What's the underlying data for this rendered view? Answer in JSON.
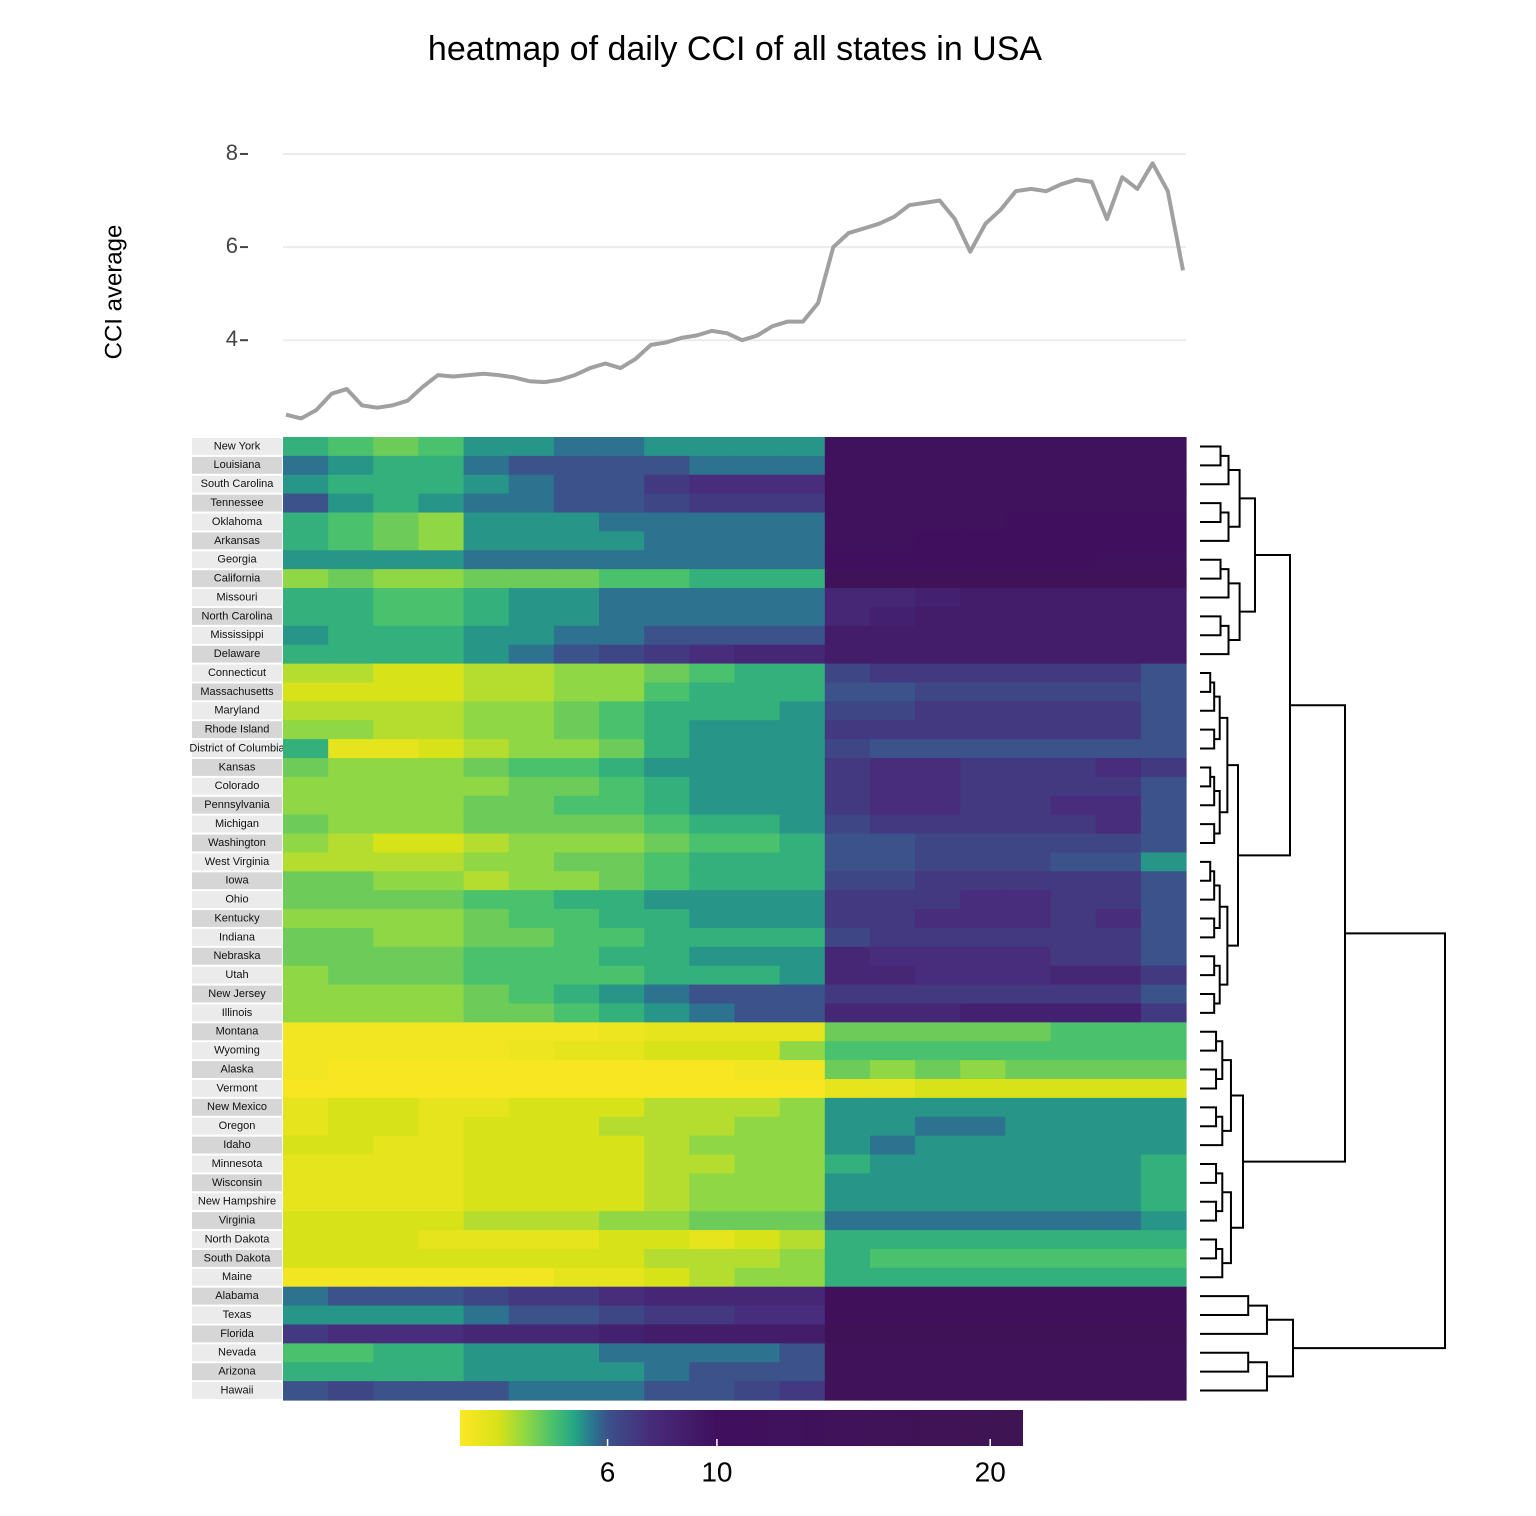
{
  "chart_data": [
    {
      "type": "line",
      "title": "heatmap of daily CCI of all states in USA",
      "y_label": "CCI average",
      "color": "#a0a0a0",
      "grid": true,
      "ylim": [
        2.2,
        8.3
      ],
      "yticks": [
        4,
        6,
        8
      ],
      "values": [
        2.4,
        2.32,
        2.5,
        2.85,
        2.95,
        2.6,
        2.55,
        2.6,
        2.7,
        3.0,
        3.25,
        3.22,
        3.25,
        3.28,
        3.25,
        3.2,
        3.12,
        3.1,
        3.15,
        3.25,
        3.4,
        3.5,
        3.4,
        3.6,
        3.9,
        3.95,
        4.05,
        4.1,
        4.2,
        4.15,
        4.0,
        4.1,
        4.3,
        4.4,
        4.4,
        4.8,
        6.0,
        6.3,
        6.4,
        6.5,
        6.65,
        6.9,
        6.95,
        7.0,
        6.6,
        5.9,
        6.5,
        6.8,
        7.2,
        7.25,
        7.2,
        7.35,
        7.45,
        7.4,
        6.6,
        7.5,
        7.25,
        7.8,
        7.2,
        5.5
      ]
    },
    {
      "type": "heatmap",
      "rows": [
        "New York",
        "Louisiana",
        "South Carolina",
        "Tennessee",
        "Oklahoma",
        "Arkansas",
        "Georgia",
        "California",
        "Missouri",
        "North Carolina",
        "Mississippi",
        "Delaware",
        "Connecticut",
        "Massachusetts",
        "Maryland",
        "Rhode Island",
        "District of Columbia",
        "Kansas",
        "Colorado",
        "Pennsylvania",
        "Michigan",
        "Washington",
        "West Virginia",
        "Iowa",
        "Ohio",
        "Kentucky",
        "Indiana",
        "Nebraska",
        "Utah",
        "New Jersey",
        "Illinois",
        "Montana",
        "Wyoming",
        "Alaska",
        "Vermont",
        "New Mexico",
        "Oregon",
        "Idaho",
        "Minnesota",
        "Wisconsin",
        "New Hampshire",
        "Virginia",
        "North Dakota",
        "South Dakota",
        "Maine",
        "Alabama",
        "Texas",
        "Florida",
        "Nevada",
        "Arizona",
        "Hawaii"
      ],
      "colorscale": [
        [
          0.6,
          "#fde725"
        ],
        [
          2.0,
          "#d8e219"
        ],
        [
          3.0,
          "#8fd744"
        ],
        [
          4.0,
          "#4ac16d"
        ],
        [
          4.8,
          "#25a585"
        ],
        [
          5.4,
          "#2a788e"
        ],
        [
          6.0,
          "#3b528b"
        ],
        [
          7.5,
          "#472d7b"
        ],
        [
          10,
          "#40105f"
        ],
        [
          21.2,
          "#3f1452"
        ]
      ],
      "colorbar_lim": [
        0.6,
        21.2
      ],
      "colorbar_ticks": [
        6,
        10,
        20
      ],
      "values": [
        [
          4.5,
          4,
          3.5,
          4,
          5,
          5,
          5.5,
          5.5,
          5,
          5,
          5,
          5,
          12,
          12,
          12,
          12,
          12,
          12,
          12,
          12
        ],
        [
          5.5,
          5,
          4.5,
          4.5,
          5.5,
          6,
          6,
          6,
          6,
          5.5,
          5.5,
          5.5,
          12,
          12,
          12,
          12,
          12,
          12,
          12,
          12
        ],
        [
          5,
          4.5,
          4.5,
          4.5,
          5,
          5.5,
          6,
          6,
          7,
          7.5,
          7.5,
          7.5,
          12,
          12,
          12,
          12,
          12,
          12,
          12,
          12
        ],
        [
          6,
          5,
          4.5,
          5,
          5.5,
          5.5,
          6,
          6,
          6.5,
          7,
          7,
          7,
          12,
          12,
          12,
          12,
          12,
          12,
          12,
          12
        ],
        [
          4.5,
          4,
          3.5,
          3,
          5,
          5,
          5,
          5.5,
          5.5,
          5.5,
          5.5,
          5.5,
          12,
          12,
          12,
          12,
          11,
          11,
          11,
          11
        ],
        [
          4.5,
          4,
          3.5,
          3,
          5,
          5,
          5,
          5,
          5.5,
          5.5,
          5.5,
          5.5,
          12,
          12,
          11,
          11,
          11,
          11,
          11,
          11
        ],
        [
          5,
          5,
          5,
          5,
          5.5,
          5.5,
          5.5,
          5.5,
          5.5,
          5.5,
          5.5,
          5.5,
          10,
          10,
          10,
          11,
          11,
          11,
          12,
          12
        ],
        [
          3,
          3.5,
          3,
          3,
          3.5,
          3.5,
          3.5,
          4,
          4,
          4.5,
          4.5,
          4.5,
          15,
          15,
          15,
          15,
          15,
          15,
          15,
          15
        ],
        [
          4.5,
          4.5,
          4,
          4,
          4.5,
          5,
          5,
          5.5,
          5.5,
          5.5,
          5.5,
          5.5,
          8,
          8,
          8.5,
          9,
          9,
          9,
          9,
          9
        ],
        [
          4.5,
          4.5,
          4,
          4,
          4.5,
          5,
          5,
          5.5,
          5.5,
          5.5,
          5.5,
          5.5,
          8,
          8.5,
          9,
          9,
          9,
          9,
          9,
          9
        ],
        [
          5,
          4.5,
          4.5,
          4.5,
          5,
          5,
          5.5,
          5.5,
          6,
          6,
          6,
          6,
          9,
          9,
          9,
          9,
          9,
          9,
          9,
          9
        ],
        [
          4.5,
          4.5,
          4.5,
          4.5,
          5,
          5.5,
          6,
          6.5,
          7,
          7.5,
          8,
          8,
          9,
          9,
          9,
          9,
          9,
          9,
          9,
          9
        ],
        [
          2.5,
          2.5,
          2,
          2,
          2.5,
          2.5,
          3,
          3,
          3.5,
          4,
          4.5,
          4.5,
          6.5,
          7,
          7,
          7,
          7,
          7,
          7,
          6
        ],
        [
          2,
          2,
          2,
          2,
          2.5,
          2.5,
          3,
          3,
          4,
          4.5,
          4.5,
          4.5,
          6,
          6,
          6.5,
          6.5,
          6.5,
          6.5,
          6.5,
          6
        ],
        [
          2.5,
          2.5,
          2.5,
          2.5,
          3,
          3,
          3.5,
          4,
          4.5,
          4.5,
          4.5,
          5,
          6.5,
          6.5,
          7,
          7,
          7,
          7,
          7,
          6
        ],
        [
          3,
          3,
          2.5,
          2.5,
          3,
          3,
          3.5,
          4,
          4.5,
          5,
          5,
          5,
          7,
          7,
          7,
          7,
          7,
          7,
          7,
          6
        ],
        [
          4.5,
          1.5,
          1.5,
          2,
          2.5,
          3,
          3,
          3.5,
          4.5,
          5,
          5,
          5,
          6.5,
          6,
          6,
          6,
          6,
          6,
          6,
          6
        ],
        [
          3.5,
          3,
          3,
          3,
          3.5,
          4,
          4,
          4.5,
          5,
          5,
          5,
          5,
          7,
          7.5,
          7.5,
          7,
          7,
          7,
          7.5,
          7
        ],
        [
          3,
          3,
          3,
          3,
          3,
          3.5,
          3.5,
          4,
          4.5,
          5,
          5,
          5,
          7,
          7.5,
          7.5,
          7,
          7,
          7,
          7,
          6
        ],
        [
          3,
          3,
          3,
          3,
          3.5,
          3.5,
          4,
          4,
          4.5,
          5,
          5,
          5,
          7,
          7.5,
          7.5,
          7,
          7,
          7.5,
          7.5,
          6
        ],
        [
          3.5,
          3,
          3,
          3,
          3.5,
          3.5,
          3.5,
          3.5,
          4,
          4.5,
          4.5,
          5,
          6.5,
          7,
          7,
          7,
          7,
          7,
          7.5,
          6
        ],
        [
          3,
          2.5,
          2,
          2,
          2.5,
          3,
          3,
          3,
          3.5,
          4,
          4,
          4.5,
          6,
          6,
          6.5,
          6.5,
          6.5,
          6.5,
          6.5,
          6
        ],
        [
          2.5,
          2.5,
          2.5,
          2.5,
          3,
          3,
          3.5,
          3.5,
          4,
          4.5,
          4.5,
          4.5,
          6,
          6,
          6.5,
          6.5,
          6.5,
          6,
          6,
          5
        ],
        [
          3.5,
          3.5,
          3,
          3,
          2.5,
          3,
          3,
          3.5,
          4,
          4.5,
          4.5,
          4.5,
          6.5,
          6.5,
          7,
          7,
          7,
          7,
          7,
          6
        ],
        [
          3.5,
          3.5,
          3.5,
          3.5,
          4,
          4,
          4.5,
          4.5,
          5,
          5,
          5,
          5,
          7,
          7,
          7,
          7.5,
          7.5,
          7,
          7,
          6
        ],
        [
          3,
          3,
          3,
          3,
          3.5,
          4,
          4,
          4.5,
          4.5,
          5,
          5,
          5,
          7,
          7,
          7.5,
          7.5,
          7.5,
          7,
          7.5,
          6
        ],
        [
          3.5,
          3.5,
          3,
          3,
          3.5,
          3.5,
          4,
          4,
          4.5,
          4.5,
          4.5,
          4.5,
          6.5,
          7,
          7,
          7,
          7,
          7,
          7,
          6
        ],
        [
          3.5,
          3.5,
          3.5,
          3.5,
          4,
          4,
          4,
          4.5,
          4.5,
          5,
          5,
          5,
          8,
          7.5,
          7.5,
          7.5,
          7.5,
          7,
          7,
          6
        ],
        [
          3,
          3.5,
          3.5,
          3.5,
          4,
          4,
          4,
          4,
          4.5,
          4.5,
          4.5,
          5,
          8,
          8,
          7.5,
          7.5,
          7.5,
          8,
          8,
          7
        ],
        [
          3,
          3,
          3,
          3,
          3.5,
          4,
          4.5,
          5,
          5.5,
          6,
          6,
          6,
          7,
          7,
          7,
          7,
          7,
          7,
          7,
          6
        ],
        [
          3,
          3,
          3,
          3,
          3.5,
          3.5,
          4,
          4.5,
          5,
          5.5,
          6,
          6,
          8,
          8,
          8,
          8.5,
          8.5,
          8.5,
          8.5,
          7
        ],
        [
          1,
          1,
          1,
          1,
          1,
          1,
          1,
          1.2,
          1.5,
          1.5,
          1.5,
          1.5,
          3.5,
          3.5,
          3.5,
          3.5,
          3.5,
          4,
          4,
          4
        ],
        [
          1,
          1,
          1,
          1,
          1,
          1.2,
          1.5,
          1.5,
          2,
          2,
          2,
          3,
          4,
          4,
          4,
          4,
          4,
          4,
          4,
          4
        ],
        [
          1,
          0.8,
          0.8,
          0.8,
          0.8,
          0.8,
          0.8,
          0.8,
          0.8,
          0.8,
          1,
          1,
          3.5,
          3,
          3.5,
          3,
          3.5,
          3.5,
          3.5,
          3.5
        ],
        [
          0.8,
          0.8,
          0.8,
          0.8,
          0.8,
          0.8,
          0.8,
          0.8,
          0.8,
          0.8,
          0.8,
          0.8,
          1.5,
          1.5,
          2,
          2,
          2,
          2,
          2,
          2
        ],
        [
          1.5,
          2,
          2,
          1.5,
          1.5,
          2,
          2,
          2,
          2.5,
          2.5,
          2.5,
          3,
          5,
          5,
          5,
          5,
          5,
          5,
          5,
          5
        ],
        [
          1.5,
          2,
          2,
          1.5,
          2,
          2,
          2,
          2.5,
          2.5,
          2.5,
          3,
          3,
          5,
          5,
          5.5,
          5.5,
          5,
          5,
          5,
          5
        ],
        [
          2,
          2,
          1.5,
          1.5,
          2,
          2,
          2,
          2,
          2.5,
          3,
          3,
          3,
          5,
          5.5,
          5,
          5,
          5,
          5,
          5,
          5
        ],
        [
          1.5,
          1.5,
          1.5,
          1.5,
          2,
          2,
          2,
          2,
          2.5,
          2.5,
          3,
          3,
          4.5,
          5,
          5,
          5,
          5,
          5,
          5,
          4.5
        ],
        [
          1.5,
          1.5,
          1.5,
          1.5,
          2,
          2,
          2,
          2,
          2.5,
          3,
          3,
          3,
          5,
          5,
          5,
          5,
          5,
          5,
          5,
          4.5
        ],
        [
          1.5,
          1.5,
          1.5,
          1.5,
          2,
          2,
          2,
          2,
          2.5,
          3,
          3,
          3,
          5,
          5,
          5,
          5,
          5,
          5,
          5,
          4.5
        ],
        [
          2,
          2,
          2,
          2,
          2.5,
          2.5,
          2.5,
          3,
          3,
          3.5,
          3.5,
          3.5,
          5.5,
          5.5,
          5.5,
          5.5,
          5.5,
          5.5,
          5.5,
          5
        ],
        [
          2,
          2,
          2,
          1.5,
          1.5,
          1.5,
          1.5,
          2,
          2,
          1.5,
          2,
          2.5,
          4.5,
          4.5,
          4.5,
          4.5,
          4.5,
          4.5,
          4.5,
          4.5
        ],
        [
          2,
          2,
          2,
          2,
          2,
          2,
          2,
          2,
          2.5,
          2.5,
          2.5,
          3,
          4.5,
          4,
          4,
          4,
          4,
          4,
          4,
          4
        ],
        [
          1,
          1,
          1,
          1,
          1,
          1,
          1.5,
          1.5,
          2,
          2.5,
          3,
          3,
          4.5,
          4.5,
          4.5,
          4.5,
          4.5,
          4.5,
          4.5,
          4.5
        ],
        [
          5.5,
          6,
          6,
          6,
          6.5,
          7,
          7,
          7.5,
          8,
          8,
          8,
          8,
          14,
          14,
          14,
          14,
          14,
          14,
          14,
          14
        ],
        [
          5,
          5,
          5,
          5,
          5.5,
          6,
          6,
          6.5,
          7,
          7,
          7.5,
          7.5,
          14,
          14,
          14,
          14,
          14,
          14,
          14,
          14
        ],
        [
          7,
          7.5,
          7.5,
          7.5,
          8,
          8,
          8,
          8.5,
          9,
          9,
          9,
          9,
          16,
          16,
          16,
          16,
          16,
          16,
          16,
          16
        ],
        [
          4,
          4,
          4.5,
          4.5,
          5,
          5,
          5,
          5.5,
          5.5,
          5.5,
          5.5,
          6,
          15,
          15,
          15,
          15,
          15,
          15,
          15,
          15
        ],
        [
          4.5,
          4.5,
          4.5,
          4.5,
          5,
          5,
          5,
          5,
          5.5,
          6,
          6,
          6,
          15,
          15,
          15,
          15,
          15,
          15,
          15,
          15
        ],
        [
          6,
          6.5,
          6,
          6,
          6,
          5.5,
          5.5,
          5.5,
          6,
          6,
          6.5,
          7,
          15,
          15,
          15,
          15,
          15,
          15,
          15,
          15
        ]
      ]
    }
  ]
}
